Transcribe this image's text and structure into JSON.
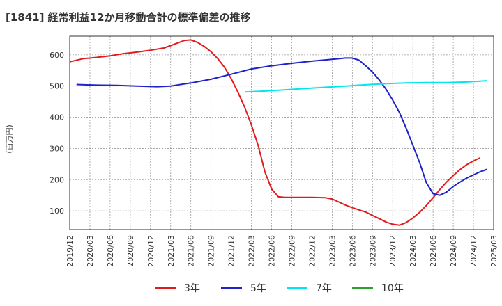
{
  "chart_data": {
    "type": "line",
    "title": "[1841]  経常利益12か月移動合計の標準偏差の推移",
    "ylabel": "(百万円)",
    "xlabel": "",
    "ylim": [
      40,
      660
    ],
    "yticks": [
      100,
      200,
      300,
      400,
      500,
      600
    ],
    "x_start": "2019-12",
    "x_end": "2025-03",
    "xticks": [
      "2019/12",
      "2020/03",
      "2020/06",
      "2020/09",
      "2020/12",
      "2021/03",
      "2021/06",
      "2021/09",
      "2021/12",
      "2022/03",
      "2022/06",
      "2022/09",
      "2022/12",
      "2023/03",
      "2023/06",
      "2023/09",
      "2023/12",
      "2024/03",
      "2024/06",
      "2024/09",
      "2024/12",
      "2025/03"
    ],
    "grid": true,
    "legend_position": "bottom",
    "series": [
      {
        "name": "3年",
        "color": "#e31a1c",
        "points": [
          [
            "2019-12",
            578
          ],
          [
            "2020-02",
            588
          ],
          [
            "2020-04",
            592
          ],
          [
            "2020-06",
            597
          ],
          [
            "2020-08",
            604
          ],
          [
            "2020-10",
            609
          ],
          [
            "2020-12",
            615
          ],
          [
            "2021-02",
            622
          ],
          [
            "2021-03",
            630
          ],
          [
            "2021-04",
            638
          ],
          [
            "2021-05",
            646
          ],
          [
            "2021-06",
            648
          ],
          [
            "2021-07",
            640
          ],
          [
            "2021-08",
            627
          ],
          [
            "2021-09",
            610
          ],
          [
            "2021-10",
            588
          ],
          [
            "2021-11",
            560
          ],
          [
            "2021-12",
            524
          ],
          [
            "2022-01",
            480
          ],
          [
            "2022-02",
            432
          ],
          [
            "2022-03",
            375
          ],
          [
            "2022-04",
            310
          ],
          [
            "2022-05",
            225
          ],
          [
            "2022-06",
            170
          ],
          [
            "2022-07",
            145
          ],
          [
            "2022-08",
            143
          ],
          [
            "2022-10",
            143
          ],
          [
            "2022-12",
            143
          ],
          [
            "2023-02",
            142
          ],
          [
            "2023-03",
            138
          ],
          [
            "2023-04",
            128
          ],
          [
            "2023-05",
            118
          ],
          [
            "2023-06",
            110
          ],
          [
            "2023-07",
            103
          ],
          [
            "2023-08",
            96
          ],
          [
            "2023-09",
            85
          ],
          [
            "2023-10",
            75
          ],
          [
            "2023-11",
            64
          ],
          [
            "2023-12",
            57
          ],
          [
            "2024-01",
            54
          ],
          [
            "2024-02",
            62
          ],
          [
            "2024-03",
            77
          ],
          [
            "2024-04",
            95
          ],
          [
            "2024-05",
            117
          ],
          [
            "2024-06",
            142
          ],
          [
            "2024-07",
            168
          ],
          [
            "2024-08",
            192
          ],
          [
            "2024-09",
            213
          ],
          [
            "2024-10",
            232
          ],
          [
            "2024-11",
            248
          ],
          [
            "2024-12",
            260
          ],
          [
            "2025-01",
            270
          ]
        ]
      },
      {
        "name": "5年",
        "color": "#1f22c8",
        "points": [
          [
            "2020-01",
            505
          ],
          [
            "2020-04",
            503
          ],
          [
            "2020-07",
            502
          ],
          [
            "2020-10",
            500
          ],
          [
            "2021-01",
            498
          ],
          [
            "2021-03",
            500
          ],
          [
            "2021-06",
            510
          ],
          [
            "2021-09",
            522
          ],
          [
            "2021-12",
            538
          ],
          [
            "2022-03",
            555
          ],
          [
            "2022-06",
            565
          ],
          [
            "2022-09",
            573
          ],
          [
            "2022-12",
            580
          ],
          [
            "2023-03",
            586
          ],
          [
            "2023-05",
            590
          ],
          [
            "2023-06",
            590
          ],
          [
            "2023-07",
            583
          ],
          [
            "2023-08",
            565
          ],
          [
            "2023-09",
            545
          ],
          [
            "2023-10",
            520
          ],
          [
            "2023-11",
            490
          ],
          [
            "2023-12",
            455
          ],
          [
            "2024-01",
            415
          ],
          [
            "2024-02",
            365
          ],
          [
            "2024-03",
            310
          ],
          [
            "2024-04",
            255
          ],
          [
            "2024-05",
            190
          ],
          [
            "2024-06",
            155
          ],
          [
            "2024-07",
            150
          ],
          [
            "2024-08",
            160
          ],
          [
            "2024-09",
            178
          ],
          [
            "2024-10",
            192
          ],
          [
            "2024-11",
            205
          ],
          [
            "2024-12",
            215
          ],
          [
            "2025-01",
            225
          ],
          [
            "2025-02",
            233
          ]
        ]
      },
      {
        "name": "7年",
        "color": "#00e5ee",
        "points": [
          [
            "2022-02",
            481
          ],
          [
            "2022-05",
            484
          ],
          [
            "2022-08",
            488
          ],
          [
            "2022-11",
            492
          ],
          [
            "2023-02",
            496
          ],
          [
            "2023-05",
            500
          ],
          [
            "2023-08",
            504
          ],
          [
            "2023-11",
            508
          ],
          [
            "2024-02",
            510
          ],
          [
            "2024-05",
            511
          ],
          [
            "2024-08",
            511
          ],
          [
            "2024-11",
            513
          ],
          [
            "2025-02",
            517
          ]
        ]
      },
      {
        "name": "10年",
        "color": "#2ca02c",
        "points": []
      }
    ]
  }
}
